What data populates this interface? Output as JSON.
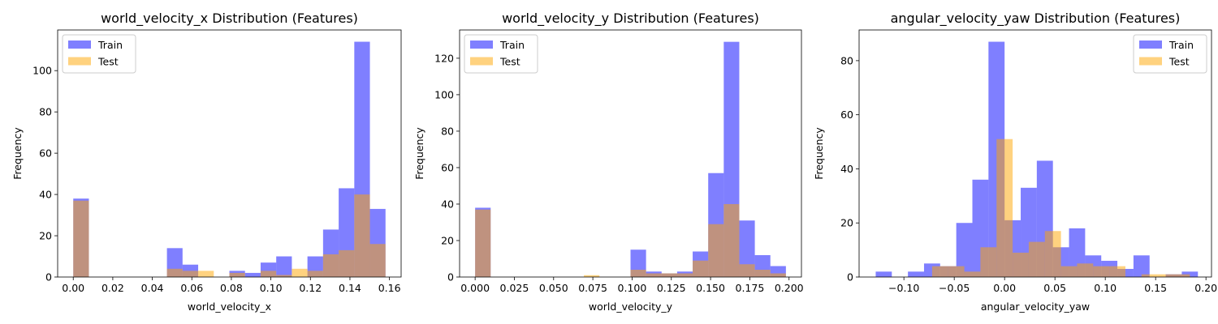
{
  "figure": {
    "background": "#ffffff",
    "train_color": "#0000ff",
    "test_color": "#ffa500",
    "train_alpha": 0.5,
    "test_alpha": 0.5
  },
  "chart_data": [
    {
      "type": "bar",
      "subtype": "histogram-overlay",
      "title": "world_velocity_x Distribution (Features)",
      "xlabel": "world_velocity_x",
      "ylabel": "Frequency",
      "xlim": [
        -0.0079,
        0.1659
      ],
      "ylim": [
        0,
        119.7
      ],
      "xticks": [
        0.0,
        0.02,
        0.04,
        0.06,
        0.08,
        0.1,
        0.12,
        0.14,
        0.16
      ],
      "xtick_labels": [
        "0.00",
        "0.02",
        "0.04",
        "0.06",
        "0.08",
        "0.10",
        "0.12",
        "0.14",
        "0.16"
      ],
      "yticks": [
        0,
        20,
        40,
        60,
        80,
        100
      ],
      "ytick_labels": [
        "0",
        "20",
        "40",
        "60",
        "80",
        "100"
      ],
      "legend": {
        "placement": "upper-left",
        "entries": [
          "Train",
          "Test"
        ]
      },
      "series": [
        {
          "name": "Train",
          "bin_start": 0.0,
          "bin_width": 0.0079,
          "values": [
            38,
            0,
            0,
            0,
            0,
            0,
            14,
            6,
            0,
            0,
            3,
            2,
            7,
            10,
            0,
            10,
            23,
            43,
            114,
            33
          ]
        },
        {
          "name": "Test",
          "bin_start": 0.0,
          "bin_width": 0.0079,
          "values": [
            37,
            0,
            0,
            0,
            0,
            0,
            4,
            3,
            3,
            0,
            2,
            0,
            3,
            1,
            4,
            3,
            11,
            13,
            40,
            16
          ]
        }
      ]
    },
    {
      "type": "bar",
      "subtype": "histogram-overlay",
      "title": "world_velocity_y Distribution (Features)",
      "xlabel": "world_velocity_y",
      "ylabel": "Frequency",
      "xlim": [
        -0.0099,
        0.2079
      ],
      "ylim": [
        0,
        135.5
      ],
      "xticks": [
        0.0,
        0.025,
        0.05,
        0.075,
        0.1,
        0.125,
        0.15,
        0.175,
        0.2
      ],
      "xtick_labels": [
        "0.000",
        "0.025",
        "0.050",
        "0.075",
        "0.100",
        "0.125",
        "0.150",
        "0.175",
        "0.200"
      ],
      "yticks": [
        0,
        20,
        40,
        60,
        80,
        100,
        120
      ],
      "ytick_labels": [
        "0",
        "20",
        "40",
        "60",
        "80",
        "100",
        "120"
      ],
      "legend": {
        "placement": "upper-left",
        "entries": [
          "Train",
          "Test"
        ]
      },
      "series": [
        {
          "name": "Train",
          "bin_start": 0.0,
          "bin_width": 0.0099,
          "values": [
            38,
            0,
            0,
            0,
            0,
            0,
            0,
            0,
            0,
            0,
            15,
            3,
            2,
            3,
            14,
            57,
            129,
            31,
            12,
            6
          ]
        },
        {
          "name": "Test",
          "bin_start": 0.0,
          "bin_width": 0.0099,
          "values": [
            37,
            0,
            0,
            0,
            0,
            0,
            0,
            1,
            0,
            0,
            4,
            2,
            2,
            2,
            9,
            29,
            40,
            7,
            4,
            2
          ]
        }
      ]
    },
    {
      "type": "bar",
      "subtype": "histogram-overlay",
      "title": "angular_velocity_yaw Distribution (Features)",
      "xlabel": "angular_velocity_yaw",
      "ylabel": "Frequency",
      "xlim": [
        -0.1445,
        0.2055
      ],
      "ylim": [
        0,
        91.35
      ],
      "xticks": [
        -0.1,
        -0.05,
        0.0,
        0.05,
        0.1,
        0.15,
        0.2
      ],
      "xtick_labels": [
        "−0.10",
        "−0.05",
        "0.00",
        "0.05",
        "0.10",
        "0.15",
        "0.20"
      ],
      "yticks": [
        0,
        20,
        40,
        60,
        80
      ],
      "ytick_labels": [
        "0",
        "20",
        "40",
        "60",
        "80"
      ],
      "legend": {
        "placement": "upper-right",
        "entries": [
          "Train",
          "Test"
        ]
      },
      "series": [
        {
          "name": "Train",
          "bin_start": -0.128,
          "bin_width": 0.016,
          "values": [
            2,
            0,
            2,
            5,
            4,
            20,
            36,
            87,
            21,
            33,
            43,
            11,
            18,
            8,
            6,
            3,
            8,
            0,
            1,
            2
          ]
        },
        {
          "name": "Test",
          "bin_start": -0.136,
          "bin_width": 0.016,
          "values": [
            0,
            0,
            0,
            0,
            4,
            4,
            2,
            11,
            51,
            9,
            13,
            17,
            4,
            5,
            4,
            4,
            0,
            1,
            1,
            1
          ]
        }
      ]
    }
  ]
}
